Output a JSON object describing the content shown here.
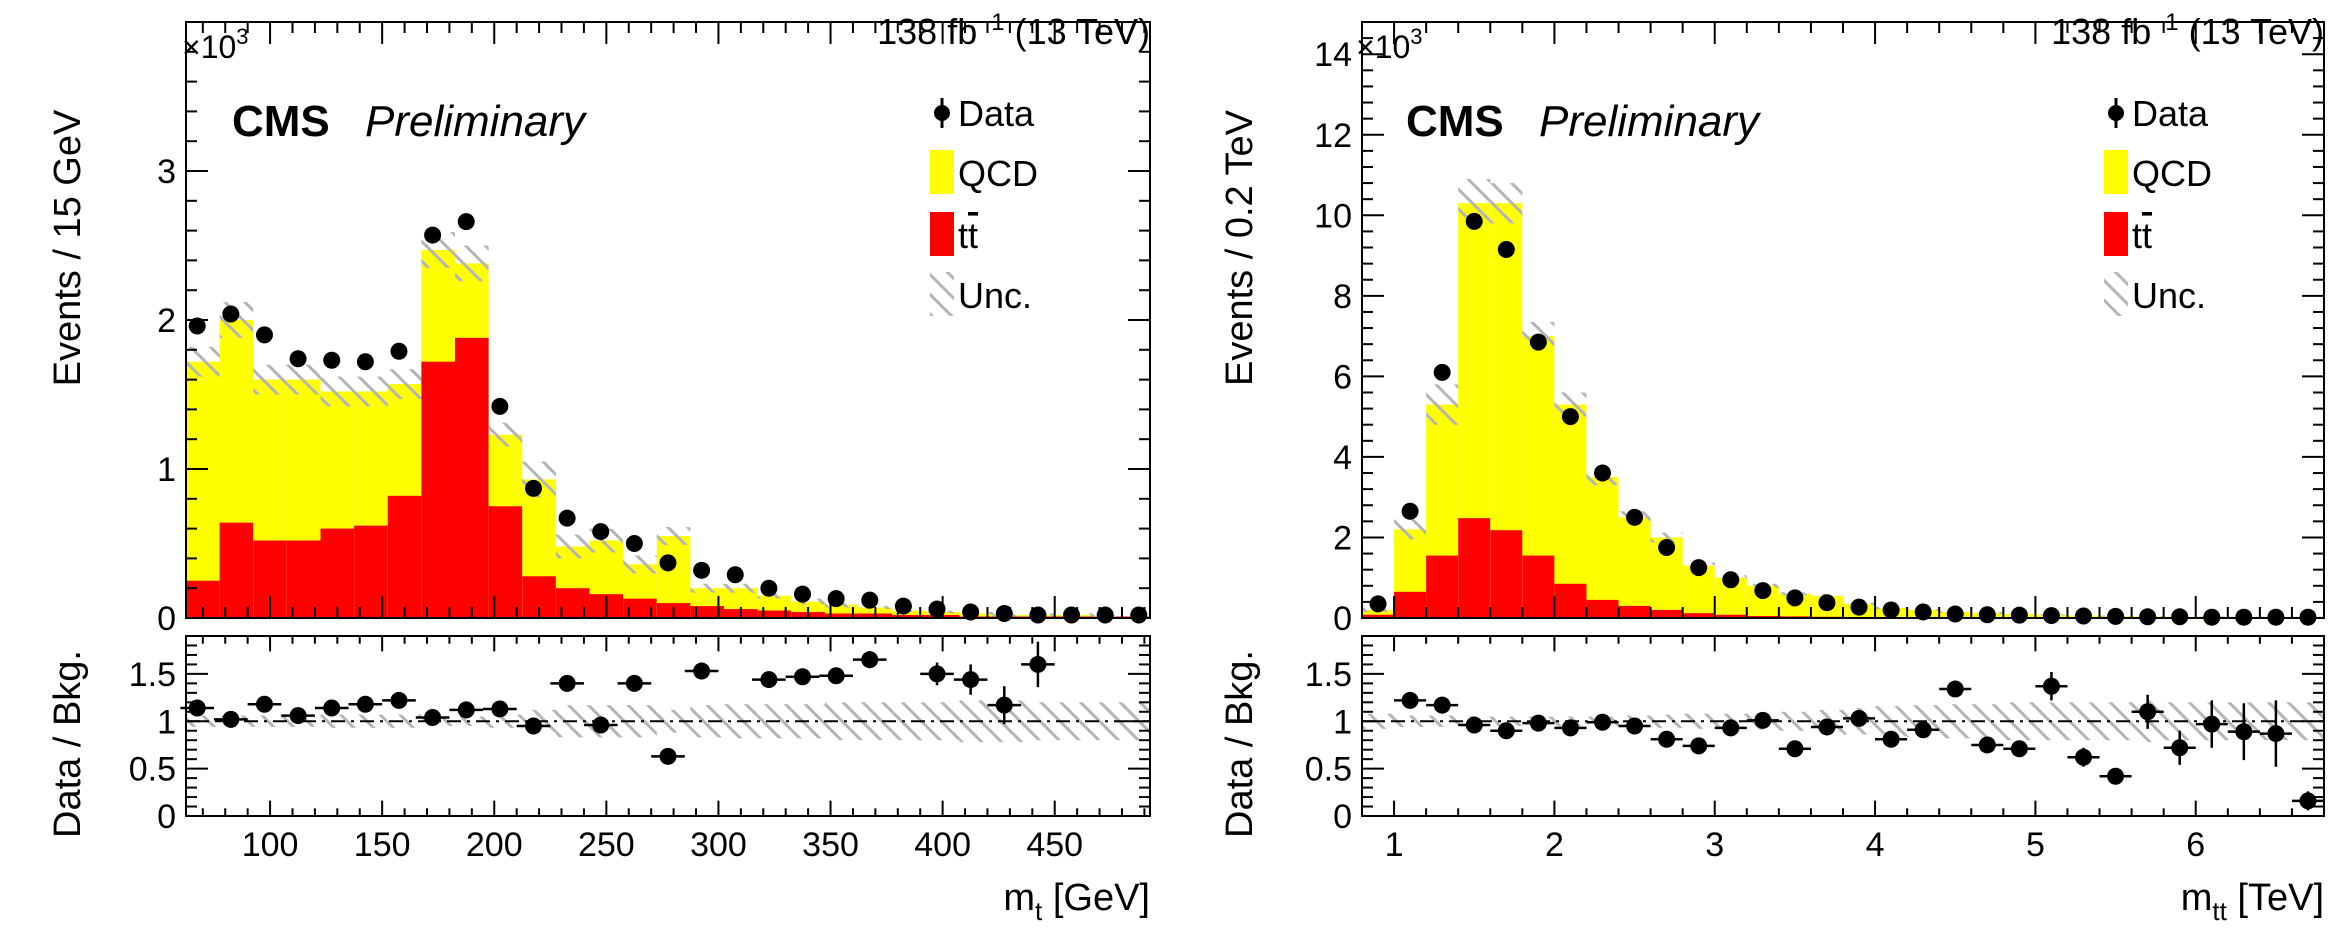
{
  "colors": {
    "qcd": "#ffff00",
    "ttbar": "#ff0000",
    "unc": "#b0b0b0",
    "data": "#000000"
  },
  "chart_data": [
    {
      "type": "bar",
      "stacked": true,
      "lumi": "138 fb",
      "lumi_exp": "−1",
      "energy": " (13 TeV)",
      "cms_label": "CMS",
      "prelim_label": "Preliminary",
      "multiplier_base": "×10",
      "multiplier_exp": "3",
      "ylabel": "Events / 15 GeV",
      "ratio_ylabel": "Data / Bkg.",
      "xlabel_main": "m",
      "xlabel_sub": "t",
      "xlabel_unit": " [GeV]",
      "xlim": [
        62.5,
        492.5
      ],
      "ylim": [
        0,
        4.0
      ],
      "ratio_ylim": [
        0,
        1.9
      ],
      "x_ticks": [
        100,
        150,
        200,
        250,
        300,
        350,
        400,
        450
      ],
      "x_tick_labels": [
        "100",
        "150",
        "200",
        "250",
        "300",
        "350",
        "400",
        "450"
      ],
      "y_ticks": [
        0,
        1,
        2,
        3
      ],
      "y_tick_labels": [
        "0",
        "1",
        "2",
        "3"
      ],
      "ratio_ticks": [
        0,
        0.5,
        1,
        1.5
      ],
      "ratio_tick_labels": [
        "0",
        "0.5",
        "1",
        "1.5"
      ],
      "bin_edges": [
        62.5,
        77.5,
        92.5,
        107.5,
        122.5,
        137.5,
        152.5,
        167.5,
        182.5,
        197.5,
        212.5,
        227.5,
        242.5,
        257.5,
        272.5,
        287.5,
        302.5,
        317.5,
        332.5,
        347.5,
        362.5,
        377.5,
        392.5,
        407.5,
        422.5,
        437.5,
        452.5,
        467.5,
        482.5,
        492.5
      ],
      "ttbar": [
        0.25,
        0.64,
        0.52,
        0.52,
        0.6,
        0.62,
        0.82,
        1.72,
        1.88,
        0.75,
        0.28,
        0.2,
        0.16,
        0.13,
        0.1,
        0.08,
        0.06,
        0.05,
        0.04,
        0.03,
        0.03,
        0.02,
        0.02,
        0.01,
        0.01,
        0.01,
        0.01,
        0.01,
        0.01
      ],
      "total_bkg": [
        1.72,
        2.0,
        1.6,
        1.6,
        1.52,
        1.52,
        1.57,
        2.47,
        2.38,
        1.23,
        0.93,
        0.48,
        0.52,
        0.36,
        0.55,
        0.2,
        0.2,
        0.15,
        0.11,
        0.09,
        0.07,
        0.05,
        0.04,
        0.03,
        0.02,
        0.02,
        0.02,
        0.01,
        0.01
      ],
      "unc": [
        0.1,
        0.12,
        0.1,
        0.1,
        0.1,
        0.1,
        0.1,
        0.12,
        0.12,
        0.08,
        0.12,
        0.08,
        0.08,
        0.06,
        0.06,
        0.03,
        0.03,
        0.02,
        0.02,
        0.02,
        0.01,
        0.01,
        0.01,
        0.01,
        0.01,
        0.01,
        0.01,
        0.01,
        0.01
      ],
      "data_x": [
        67.5,
        82.5,
        97.5,
        112.5,
        127.5,
        142.5,
        157.5,
        172.5,
        187.5,
        202.5,
        217.5,
        232.5,
        247.5,
        262.5,
        277.5,
        292.5,
        307.5,
        322.5,
        337.5,
        352.5,
        367.5,
        382.5,
        397.5,
        412.5,
        427.5,
        442.5,
        457.5,
        472.5,
        487.5
      ],
      "data_y": [
        1.96,
        2.04,
        1.9,
        1.74,
        1.73,
        1.72,
        1.79,
        2.57,
        2.66,
        1.42,
        0.87,
        0.67,
        0.58,
        0.5,
        0.37,
        0.32,
        0.29,
        0.2,
        0.16,
        0.13,
        0.12,
        0.08,
        0.06,
        0.04,
        0.03,
        0.02,
        0.02,
        0.02,
        0.02
      ],
      "ratio_x": [
        67.5,
        82.5,
        97.5,
        112.5,
        127.5,
        142.5,
        157.5,
        172.5,
        187.5,
        202.5,
        217.5,
        232.5,
        247.5,
        262.5,
        277.5,
        292.5,
        322.5,
        337.5,
        352.5,
        367.5,
        397.5,
        412.5,
        427.5,
        442.5
      ],
      "ratio_y": [
        1.14,
        1.02,
        1.18,
        1.06,
        1.14,
        1.18,
        1.22,
        1.04,
        1.12,
        1.13,
        0.95,
        1.4,
        0.96,
        1.4,
        0.63,
        1.53,
        1.44,
        1.47,
        1.48,
        1.65,
        1.5,
        1.44,
        1.17,
        1.6
      ],
      "ratio_err": [
        0.03,
        0.03,
        0.03,
        0.03,
        0.03,
        0.03,
        0.03,
        0.03,
        0.03,
        0.03,
        0.04,
        0.05,
        0.05,
        0.05,
        0.05,
        0.05,
        0.05,
        0.05,
        0.07,
        0.09,
        0.12,
        0.16,
        0.2,
        0.24
      ],
      "ratio_band": [
        0.06,
        0.06,
        0.06,
        0.06,
        0.07,
        0.07,
        0.07,
        0.05,
        0.05,
        0.07,
        0.12,
        0.17,
        0.17,
        0.17,
        0.12,
        0.17,
        0.18,
        0.18,
        0.18,
        0.2,
        0.2,
        0.2,
        0.2,
        0.22,
        0.22,
        0.2,
        0.2,
        0.2,
        0.2
      ],
      "legend": [
        "Data",
        "QCD",
        "t",
        "Unc."
      ],
      "legend_tt_bar": "t"
    },
    {
      "type": "bar",
      "stacked": true,
      "lumi": "138 fb",
      "lumi_exp": "−1",
      "energy": " (13 TeV)",
      "cms_label": "CMS",
      "prelim_label": "Preliminary",
      "multiplier_base": "×10",
      "multiplier_exp": "3",
      "ylabel": "Events / 0.2 TeV",
      "ratio_ylabel": "Data / Bkg.",
      "xlabel_main": "m",
      "xlabel_sub": "tt",
      "xlabel_unit": " [TeV]",
      "xlim": [
        0.8,
        6.8
      ],
      "ylim": [
        0,
        14.8
      ],
      "ratio_ylim": [
        0,
        1.9
      ],
      "x_ticks": [
        1,
        2,
        3,
        4,
        5,
        6
      ],
      "x_tick_labels": [
        "1",
        "2",
        "3",
        "4",
        "5",
        "6"
      ],
      "y_ticks": [
        0,
        2,
        4,
        6,
        8,
        10,
        12,
        14
      ],
      "y_tick_labels": [
        "0",
        "2",
        "4",
        "6",
        "8",
        "10",
        "12",
        "14"
      ],
      "ratio_ticks": [
        0,
        0.5,
        1,
        1.5
      ],
      "ratio_tick_labels": [
        "0",
        "0.5",
        "1",
        "1.5"
      ],
      "bin_edges": [
        0.8,
        1.0,
        1.2,
        1.4,
        1.6,
        1.8,
        2.0,
        2.2,
        2.4,
        2.6,
        2.8,
        3.0,
        3.2,
        3.4,
        3.6,
        3.8,
        4.0,
        4.2,
        4.4,
        4.6,
        4.8,
        5.0,
        5.2,
        5.4,
        5.6,
        5.8,
        6.0,
        6.2,
        6.4,
        6.6,
        6.8
      ],
      "ttbar": [
        0.08,
        0.65,
        1.55,
        2.48,
        2.18,
        1.55,
        0.85,
        0.45,
        0.3,
        0.2,
        0.12,
        0.08,
        0.05,
        0.04,
        0.03,
        0.02,
        0.02,
        0.01,
        0.01,
        0.01,
        0.01,
        0.01,
        0.01,
        0.01,
        0.01,
        0.01,
        0.01,
        0.01,
        0.01,
        0.01
      ],
      "total_bkg": [
        0.2,
        2.2,
        5.3,
        10.3,
        10.3,
        7.0,
        5.3,
        3.5,
        2.5,
        2.0,
        1.3,
        1.0,
        0.8,
        0.6,
        0.55,
        0.35,
        0.25,
        0.2,
        0.15,
        0.12,
        0.1,
        0.08,
        0.06,
        0.05,
        0.04,
        0.03,
        0.03,
        0.02,
        0.02,
        0.02
      ],
      "unc": [
        0.05,
        0.25,
        0.5,
        0.6,
        0.5,
        0.35,
        0.3,
        0.2,
        0.15,
        0.12,
        0.08,
        0.06,
        0.05,
        0.04,
        0.04,
        0.03,
        0.03,
        0.02,
        0.02,
        0.02,
        0.02,
        0.01,
        0.01,
        0.01,
        0.01,
        0.01,
        0.01,
        0.01,
        0.01,
        0.01
      ],
      "data_x": [
        0.9,
        1.1,
        1.3,
        1.5,
        1.7,
        1.9,
        2.1,
        2.3,
        2.5,
        2.7,
        2.9,
        3.1,
        3.3,
        3.5,
        3.7,
        3.9,
        4.1,
        4.3,
        4.5,
        4.7,
        4.9,
        5.1,
        5.3,
        5.5,
        5.7,
        5.9,
        6.1,
        6.3,
        6.5,
        6.7
      ],
      "data_y": [
        0.35,
        2.65,
        6.1,
        9.85,
        9.15,
        6.85,
        5.0,
        3.6,
        2.5,
        1.75,
        1.25,
        0.95,
        0.68,
        0.5,
        0.38,
        0.27,
        0.2,
        0.15,
        0.1,
        0.08,
        0.07,
        0.06,
        0.05,
        0.04,
        0.03,
        0.03,
        0.02,
        0.02,
        0.02,
        0.02
      ],
      "ratio_x": [
        1.1,
        1.3,
        1.5,
        1.7,
        1.9,
        2.1,
        2.3,
        2.5,
        2.7,
        2.9,
        3.1,
        3.3,
        3.5,
        3.7,
        3.9,
        4.1,
        4.3,
        4.5,
        4.7,
        4.9,
        5.1,
        5.3,
        5.5,
        5.7,
        5.9,
        6.1,
        6.3,
        6.5,
        6.7
      ],
      "ratio_y": [
        1.22,
        1.17,
        0.96,
        0.9,
        0.98,
        0.93,
        0.99,
        0.95,
        0.81,
        0.74,
        0.93,
        1.01,
        0.71,
        0.94,
        1.03,
        0.81,
        0.91,
        1.34,
        0.75,
        0.71,
        1.37,
        0.62,
        0.42,
        1.1,
        0.72,
        0.97,
        0.89,
        0.87,
        0.16
      ],
      "ratio_err": [
        0.03,
        0.03,
        0.02,
        0.02,
        0.02,
        0.02,
        0.02,
        0.02,
        0.03,
        0.03,
        0.03,
        0.04,
        0.04,
        0.05,
        0.05,
        0.06,
        0.07,
        0.08,
        0.08,
        0.08,
        0.15,
        0.1,
        0.08,
        0.18,
        0.18,
        0.25,
        0.3,
        0.35,
        0.1
      ],
      "ratio_band": [
        0.08,
        0.06,
        0.06,
        0.05,
        0.05,
        0.05,
        0.05,
        0.05,
        0.06,
        0.07,
        0.08,
        0.08,
        0.09,
        0.1,
        0.12,
        0.14,
        0.16,
        0.17,
        0.18,
        0.18,
        0.2,
        0.2,
        0.2,
        0.2,
        0.22,
        0.2,
        0.2,
        0.2,
        0.2,
        0.2
      ],
      "legend": [
        "Data",
        "QCD",
        "t",
        "Unc."
      ],
      "legend_tt_bar": "t"
    }
  ]
}
